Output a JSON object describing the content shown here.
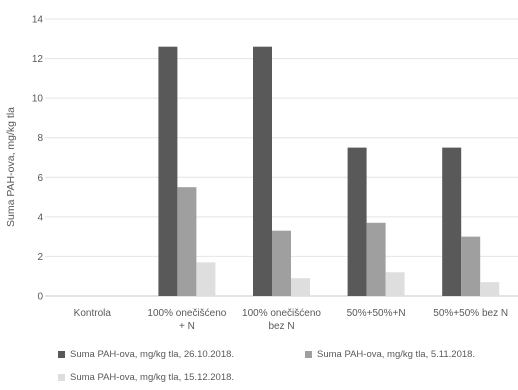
{
  "chart_data": {
    "type": "bar",
    "ylabel": "Suma PAH-ova, mg/kg tla",
    "ylim": [
      0,
      14
    ],
    "yticks": [
      0,
      2,
      4,
      6,
      8,
      10,
      12,
      14
    ],
    "grid": true,
    "legend_position": "bottom",
    "categories": [
      [
        "Kontrola"
      ],
      [
        "100% onečišćeno",
        "+ N"
      ],
      [
        "100% onečišćeno",
        "bez N"
      ],
      [
        "50%+50%+N"
      ],
      [
        "50%+50% bez N"
      ]
    ],
    "series": [
      {
        "name": "Suma PAH-ova, mg/kg tla, 26.10.2018.",
        "color": "#595959",
        "values": [
          0,
          12.6,
          12.6,
          7.5,
          7.5
        ]
      },
      {
        "name": "Suma PAH-ova, mg/kg tla, 5.11.2018.",
        "color": "#9f9f9f",
        "values": [
          0,
          5.5,
          3.3,
          3.7,
          3.0
        ]
      },
      {
        "name": "Suma PAH-ova, mg/kg tla, 15.12.2018.",
        "color": "#dedede",
        "values": [
          0,
          1.7,
          0.9,
          1.2,
          0.7
        ]
      }
    ]
  }
}
